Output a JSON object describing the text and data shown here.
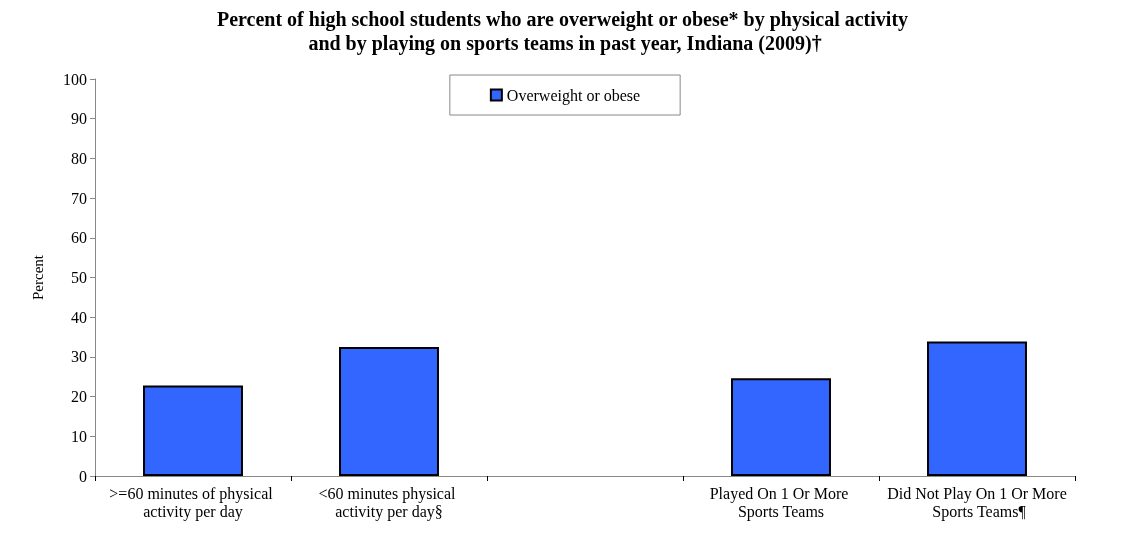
{
  "chart_data": {
    "type": "bar",
    "title": "Percent of high school students who are overweight or obese* by physical activity and by playing on sports teams in past year, Indiana (2009)†",
    "ylabel": "Percent",
    "categories": [
      ">=60 minutes of physical activity per day",
      "<60 minutes physical activity per day§",
      null,
      "Played On 1 Or More Sports Teams",
      "Did Not Play On 1 Or More Sports Teams¶"
    ],
    "series": [
      {
        "name": "Overweight or obese",
        "color": "#3366ff",
        "values": [
          22.8,
          32.5,
          null,
          24.6,
          33.9
        ]
      }
    ],
    "ylim": [
      0,
      100
    ],
    "yticks": [
      0,
      10,
      20,
      30,
      40,
      50,
      60,
      70,
      80,
      90,
      100
    ],
    "grid": false,
    "legend": "top"
  }
}
